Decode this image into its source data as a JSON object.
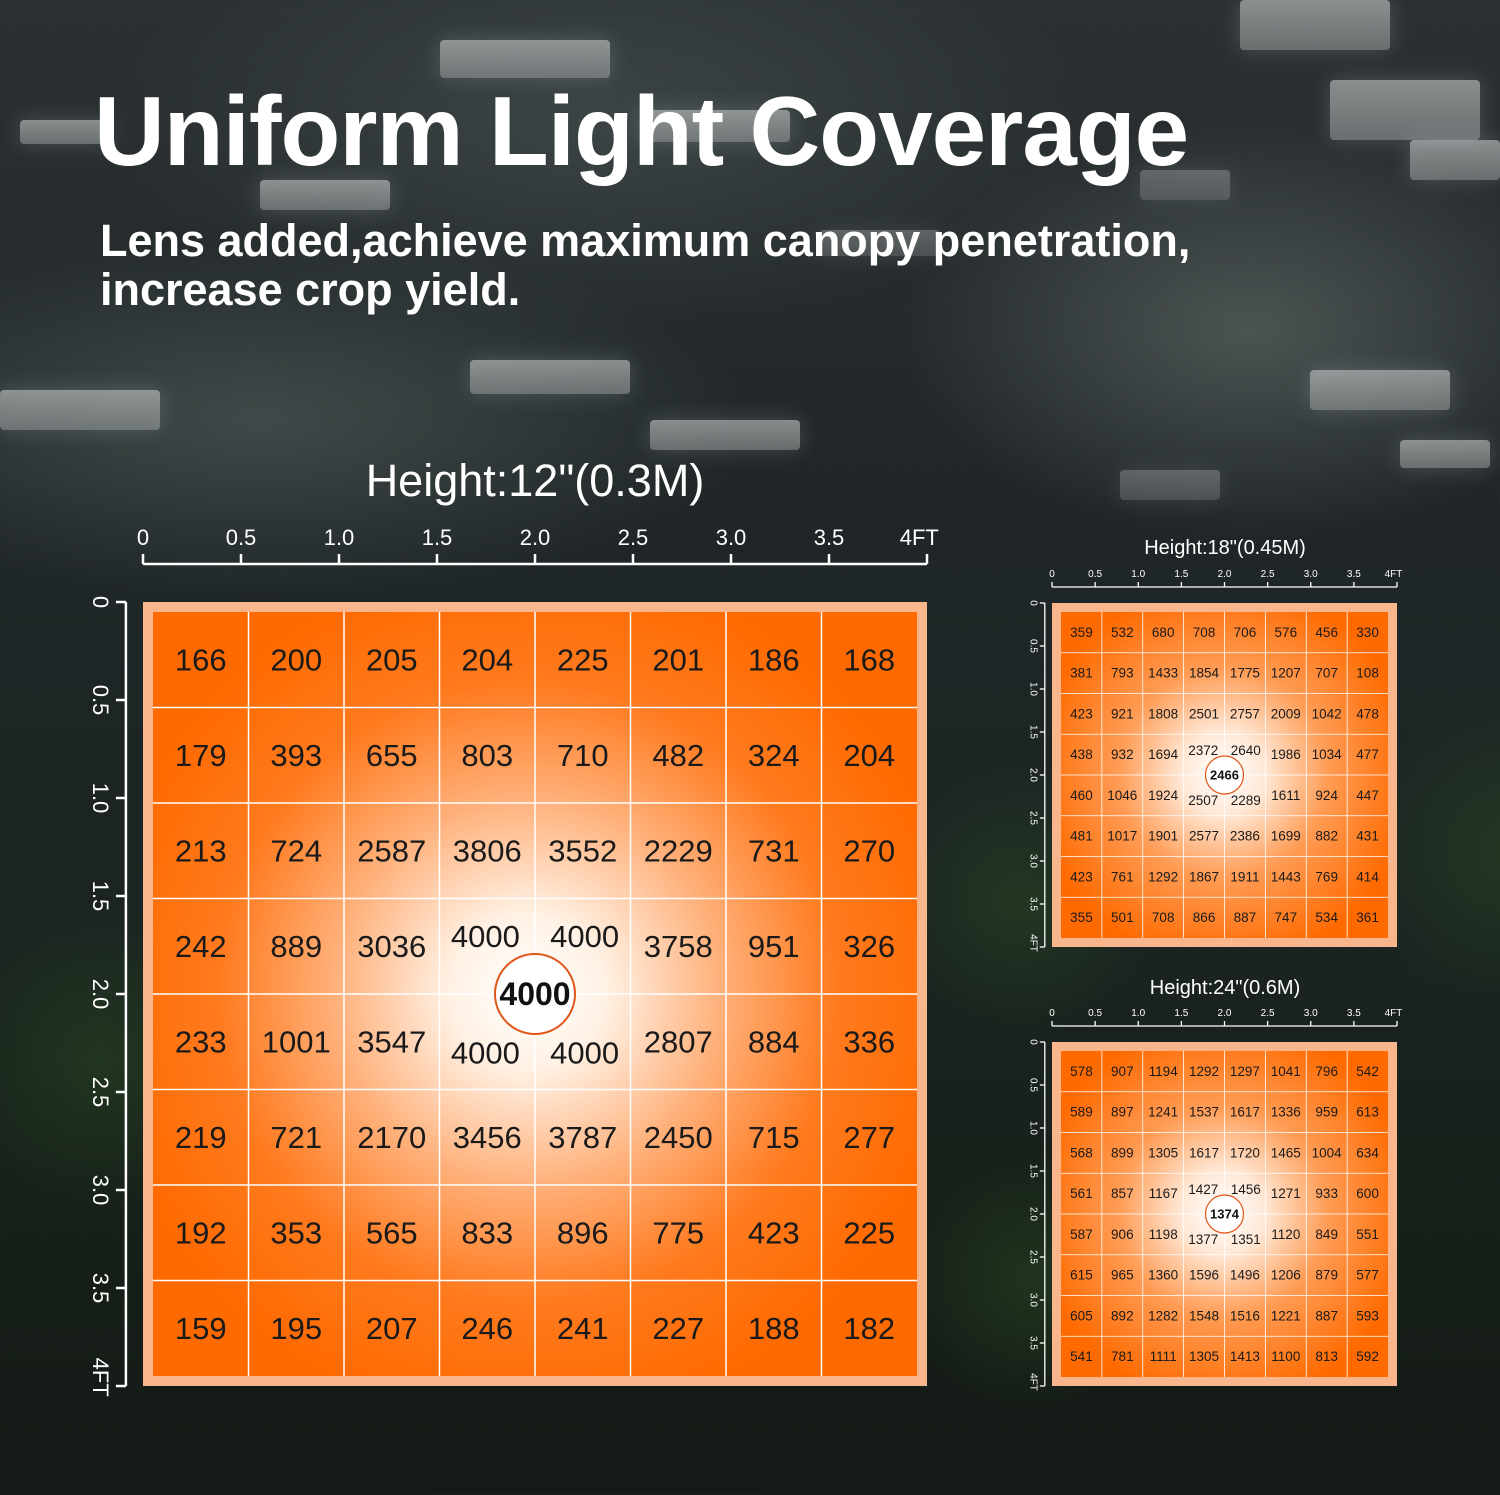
{
  "header": {
    "title": "Uniform Light Coverage",
    "subtitle_lines": [
      "Lens added,achieve maximum canopy penetration,",
      "increase crop yield."
    ]
  },
  "colors": {
    "grid_orange": "#ff6a00",
    "center_white": "#ffffff",
    "frame_peach": "#f9b68c",
    "circle_border": "#e0561a"
  },
  "chart_data": [
    {
      "type": "heatmap",
      "title": "Height:12\"(0.3M)",
      "x_ticks": [
        "0",
        "0.5",
        "1.0",
        "1.5",
        "2.0",
        "2.5",
        "3.0",
        "3.5",
        "4FT"
      ],
      "y_ticks": [
        "0",
        "0.5",
        "1.0",
        "1.5",
        "2.0",
        "2.5",
        "3.0",
        "3.5",
        "4FT"
      ],
      "values": [
        [
          166,
          200,
          205,
          204,
          225,
          201,
          186,
          168
        ],
        [
          179,
          393,
          655,
          803,
          710,
          482,
          324,
          204
        ],
        [
          213,
          724,
          2587,
          3806,
          3552,
          2229,
          731,
          270
        ],
        [
          242,
          889,
          3036,
          4000,
          4000,
          3758,
          951,
          326
        ],
        [
          233,
          1001,
          3547,
          4000,
          4000,
          2807,
          884,
          336
        ],
        [
          219,
          721,
          2170,
          3456,
          3787,
          2450,
          715,
          277
        ],
        [
          192,
          353,
          565,
          833,
          896,
          775,
          423,
          225
        ],
        [
          159,
          195,
          207,
          246,
          241,
          227,
          188,
          182
        ]
      ],
      "center_value": 4000
    },
    {
      "type": "heatmap",
      "title": "Height:18\"(0.45M)",
      "x_ticks": [
        "0",
        "0.5",
        "1.0",
        "1.5",
        "2.0",
        "2.5",
        "3.0",
        "3.5",
        "4FT"
      ],
      "y_ticks": [
        "0",
        "0.5",
        "1.0",
        "1.5",
        "2.0",
        "2.5",
        "3.0",
        "3.5",
        "4FT"
      ],
      "values": [
        [
          359,
          532,
          680,
          708,
          706,
          576,
          456,
          330
        ],
        [
          381,
          793,
          1433,
          1854,
          1775,
          1207,
          707,
          108
        ],
        [
          423,
          921,
          1808,
          2501,
          2757,
          2009,
          1042,
          478
        ],
        [
          438,
          932,
          1694,
          2372,
          2640,
          1986,
          1034,
          477
        ],
        [
          460,
          1046,
          1924,
          2507,
          2289,
          1611,
          924,
          447
        ],
        [
          481,
          1017,
          1901,
          2577,
          2386,
          1699,
          882,
          431
        ],
        [
          423,
          761,
          1292,
          1867,
          1911,
          1443,
          769,
          414
        ],
        [
          355,
          501,
          708,
          866,
          887,
          747,
          534,
          361
        ]
      ],
      "center_value": 2466
    },
    {
      "type": "heatmap",
      "title": "Height:24\"(0.6M)",
      "x_ticks": [
        "0",
        "0.5",
        "1.0",
        "1.5",
        "2.0",
        "2.5",
        "3.0",
        "3.5",
        "4FT"
      ],
      "y_ticks": [
        "0",
        "0.5",
        "1.0",
        "1.5",
        "2.0",
        "2.5",
        "3.0",
        "3.5",
        "4FT"
      ],
      "values": [
        [
          578,
          907,
          1194,
          1292,
          1297,
          1041,
          796,
          542
        ],
        [
          589,
          897,
          1241,
          1537,
          1617,
          1336,
          959,
          613
        ],
        [
          568,
          899,
          1305,
          1617,
          1720,
          1465,
          1004,
          634
        ],
        [
          561,
          857,
          1167,
          1427,
          1456,
          1271,
          933,
          600
        ],
        [
          587,
          906,
          1198,
          1377,
          1351,
          1120,
          849,
          551
        ],
        [
          615,
          965,
          1360,
          1596,
          1496,
          1206,
          879,
          577
        ],
        [
          605,
          892,
          1282,
          1548,
          1516,
          1221,
          887,
          593
        ],
        [
          541,
          781,
          1111,
          1305,
          1413,
          1100,
          813,
          592
        ]
      ],
      "center_value": 1374
    }
  ]
}
